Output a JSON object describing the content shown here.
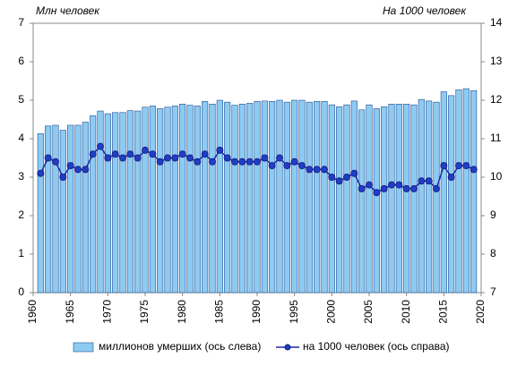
{
  "chart_data": {
    "type": "bar_line",
    "y_label": "Млн  человек",
    "y2_label": "На 1000 человек",
    "x": [
      1961,
      1962,
      1963,
      1964,
      1965,
      1966,
      1967,
      1968,
      1969,
      1970,
      1971,
      1972,
      1973,
      1974,
      1975,
      1976,
      1977,
      1978,
      1979,
      1980,
      1981,
      1982,
      1983,
      1984,
      1985,
      1986,
      1987,
      1988,
      1989,
      1990,
      1991,
      1992,
      1993,
      1994,
      1995,
      1996,
      1997,
      1998,
      1999,
      2000,
      2001,
      2002,
      2003,
      2004,
      2005,
      2006,
      2007,
      2008,
      2009,
      2010,
      2011,
      2012,
      2013,
      2014,
      2015,
      2016,
      2017,
      2018,
      2019
    ],
    "series": [
      {
        "name": "миллионов  умерших (ось слева)",
        "type": "bar",
        "color": "#8ecbf3",
        "values": [
          4.13,
          4.33,
          4.35,
          4.22,
          4.35,
          4.35,
          4.43,
          4.6,
          4.72,
          4.65,
          4.68,
          4.68,
          4.73,
          4.72,
          4.82,
          4.85,
          4.78,
          4.82,
          4.85,
          4.9,
          4.87,
          4.85,
          4.97,
          4.9,
          5.0,
          4.95,
          4.87,
          4.9,
          4.92,
          4.97,
          4.98,
          4.97,
          5.0,
          4.95,
          5.0,
          5.0,
          4.95,
          4.97,
          4.97,
          4.88,
          4.83,
          4.88,
          4.98,
          4.75,
          4.88,
          4.78,
          4.83,
          4.9,
          4.9,
          4.9,
          4.88,
          5.02,
          4.98,
          4.95,
          5.22,
          5.12,
          5.27,
          5.3,
          5.25
        ]
      },
      {
        "name": "на 1000 человек (ось справа)",
        "type": "line",
        "axis": "y2",
        "color": "#1a2aa8",
        "values": [
          10.1,
          10.5,
          10.4,
          10.0,
          10.3,
          10.2,
          10.2,
          10.6,
          10.8,
          10.5,
          10.6,
          10.5,
          10.6,
          10.5,
          10.7,
          10.6,
          10.4,
          10.5,
          10.5,
          10.6,
          10.5,
          10.4,
          10.6,
          10.4,
          10.7,
          10.5,
          10.4,
          10.4,
          10.4,
          10.4,
          10.5,
          10.3,
          10.5,
          10.3,
          10.4,
          10.3,
          10.2,
          10.2,
          10.2,
          10.0,
          9.9,
          10.0,
          10.1,
          9.7,
          9.8,
          9.6,
          9.7,
          9.8,
          9.8,
          9.7,
          9.7,
          9.9,
          9.9,
          9.7,
          10.3,
          10.0,
          10.3,
          10.3,
          10.2
        ]
      }
    ],
    "xlim": [
      1960,
      2020
    ],
    "xticks": [
      1960,
      1965,
      1970,
      1975,
      1980,
      1985,
      1990,
      1995,
      2000,
      2005,
      2010,
      2015,
      2020
    ],
    "ylim": [
      0,
      7
    ],
    "yticks": [
      0,
      1,
      2,
      3,
      4,
      5,
      6,
      7
    ],
    "y2lim": [
      7,
      14
    ],
    "y2ticks": [
      7,
      8,
      9,
      10,
      11,
      12,
      13,
      14
    ],
    "legend": "bottom"
  }
}
